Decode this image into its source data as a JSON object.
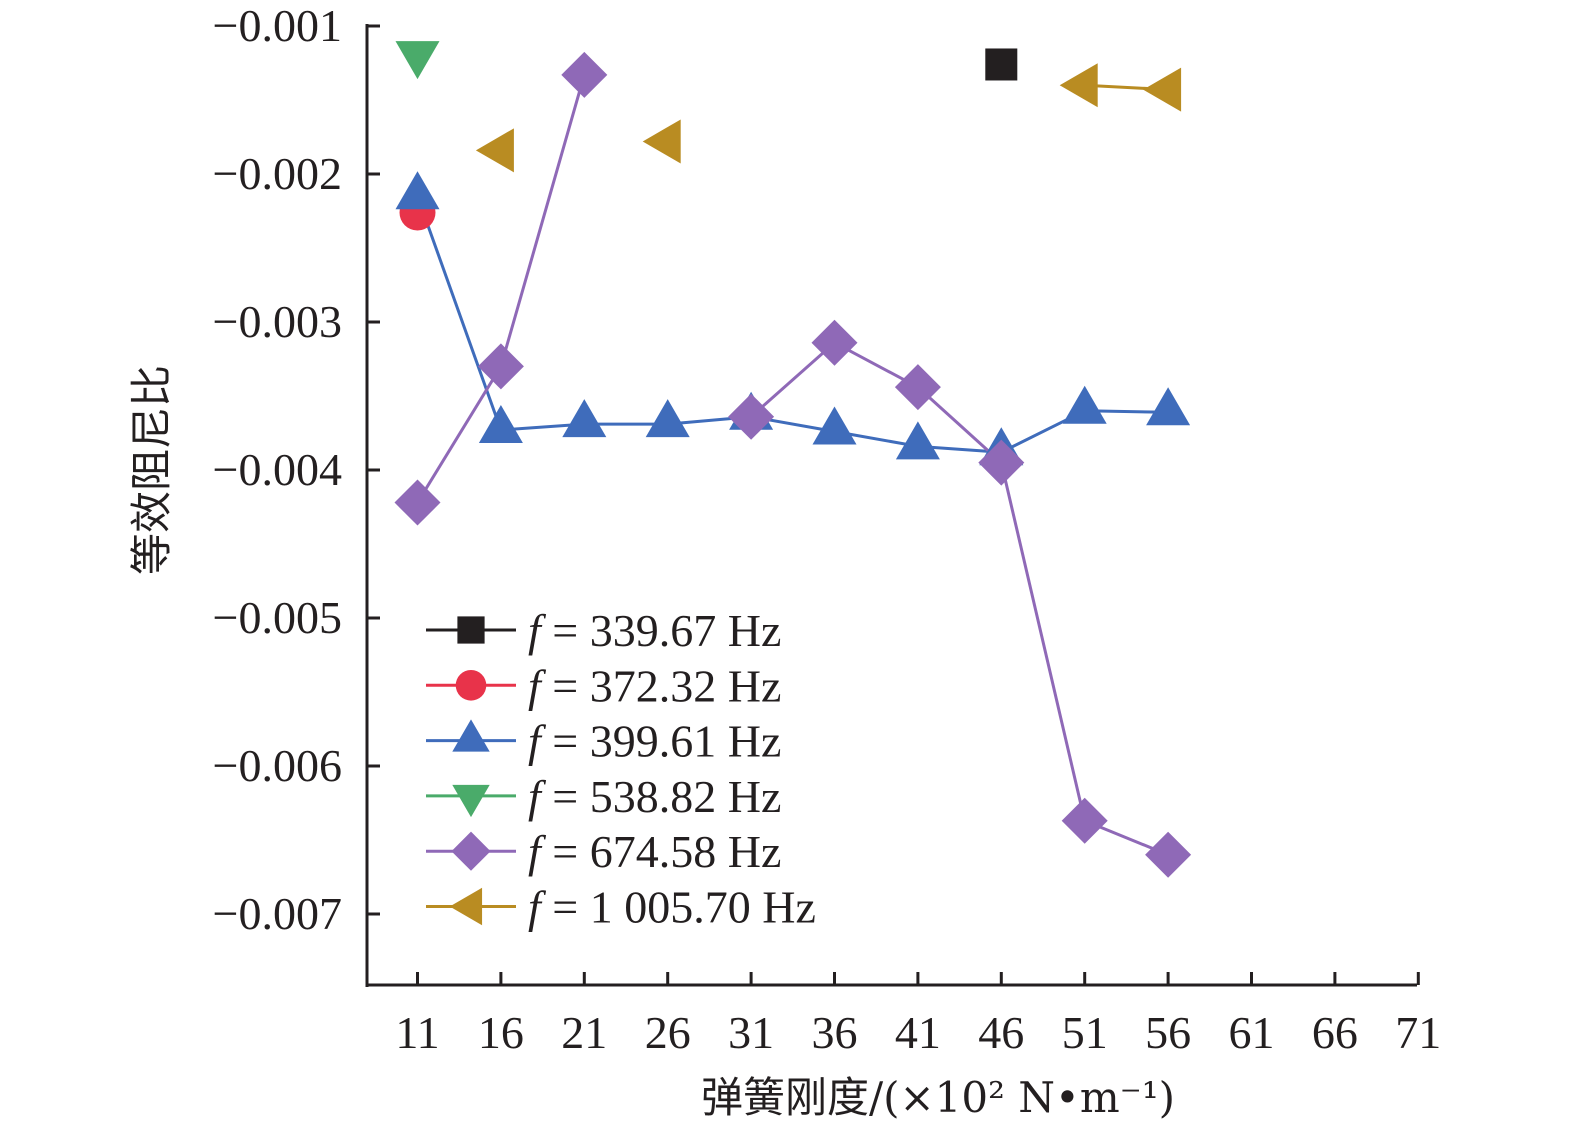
{
  "chart_data": {
    "type": "line",
    "title": "",
    "xlabel": "弹簧刚度/(×10² N•m⁻¹)",
    "ylabel": "等效阻尼比",
    "x_ticks": [
      11,
      16,
      21,
      26,
      31,
      36,
      41,
      46,
      51,
      56,
      61,
      66,
      71
    ],
    "y_ticks": [
      -0.001,
      -0.002,
      -0.003,
      -0.004,
      -0.005,
      -0.006,
      -0.007
    ],
    "y_tick_labels": [
      "−0.001",
      "−0.002",
      "−0.003",
      "−0.004",
      "−0.005",
      "−0.006",
      "−0.007"
    ],
    "xlim": [
      8,
      71
    ],
    "ylim": [
      -0.0075,
      -0.001
    ],
    "grid": false,
    "legend_position": "bottom-left",
    "series": [
      {
        "name": "f = 339.67 Hz",
        "label_prefix": "f",
        "label_value": "= 339.67 Hz",
        "color": "#231f20",
        "marker": "square",
        "points": [
          [
            46,
            -0.00126
          ]
        ]
      },
      {
        "name": "f = 372.32 Hz",
        "label_prefix": "f",
        "label_value": "= 372.32 Hz",
        "color": "#e8334a",
        "marker": "circle",
        "points": [
          [
            11,
            -0.00226
          ]
        ]
      },
      {
        "name": "f = 399.61 Hz",
        "label_prefix": "f",
        "label_value": "= 399.61 Hz",
        "color": "#3f6cbb",
        "marker": "triangle-up",
        "points": [
          [
            11,
            -0.00215
          ],
          [
            16,
            -0.00373
          ],
          [
            21,
            -0.00369
          ],
          [
            26,
            -0.00369
          ],
          [
            31,
            -0.00364
          ],
          [
            36,
            -0.00374
          ],
          [
            41,
            -0.00384
          ],
          [
            46,
            -0.00388
          ],
          [
            51,
            -0.0036
          ],
          [
            56,
            -0.00361
          ]
        ]
      },
      {
        "name": "f = 538.82 Hz",
        "label_prefix": "f",
        "label_value": "= 538.82 Hz",
        "color": "#4aab6a",
        "marker": "triangle-down",
        "points": [
          [
            11,
            -0.00119
          ]
        ]
      },
      {
        "name": "f = 674.58 Hz",
        "label_prefix": "f",
        "label_value": "= 674.58 Hz",
        "color": "#8f69b7",
        "marker": "diamond",
        "points": [
          [
            11,
            -0.00422
          ],
          [
            16,
            -0.0033
          ],
          [
            21,
            -0.00133
          ],
          [
            31,
            -0.00364
          ],
          [
            36,
            -0.00314
          ],
          [
            41,
            -0.00344
          ],
          [
            46,
            -0.00395
          ],
          [
            51,
            -0.00637
          ],
          [
            56,
            -0.0066
          ]
        ],
        "segments": [
          [
            0,
            1
          ],
          [
            1,
            2
          ],
          [
            3,
            4
          ],
          [
            4,
            5
          ],
          [
            5,
            6
          ],
          [
            6,
            7
          ],
          [
            7,
            8
          ]
        ]
      },
      {
        "name": "f = 1 005.70 Hz",
        "label_prefix": "f",
        "label_value": "= 1 005.70 Hz",
        "color": "#b98c22",
        "marker": "triangle-left",
        "points": [
          [
            16,
            -0.00184
          ],
          [
            26,
            -0.00178
          ],
          [
            51,
            -0.0014
          ],
          [
            56,
            -0.00143
          ]
        ],
        "segments": [
          [
            2,
            3
          ]
        ]
      }
    ]
  }
}
